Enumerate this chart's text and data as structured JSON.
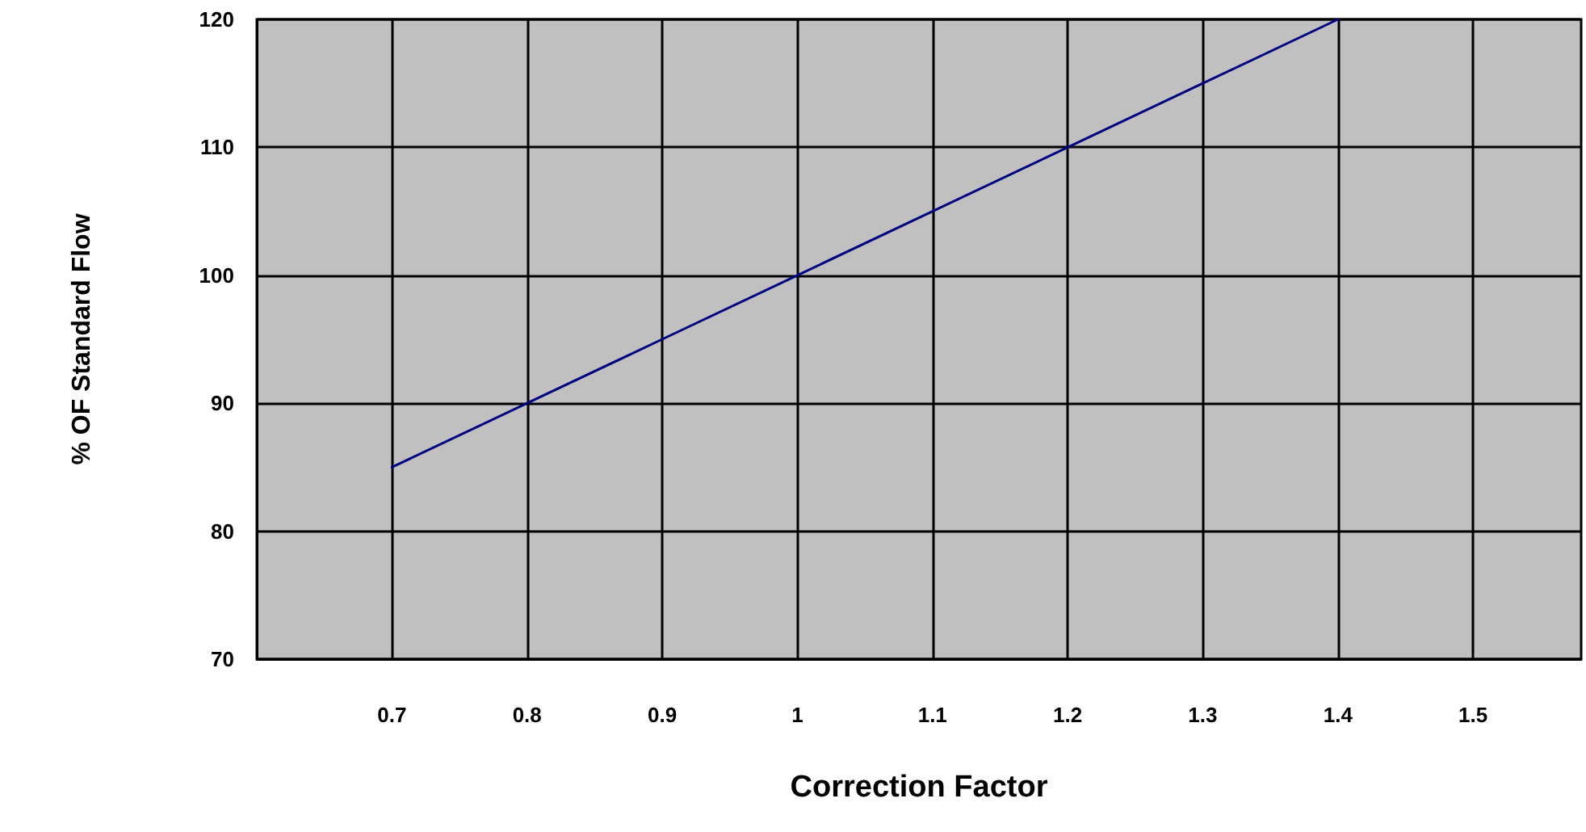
{
  "chart_data": {
    "type": "line",
    "xlabel": "Correction Factor",
    "ylabel": "% OF Standard Flow",
    "x": [
      0.7,
      0.8,
      0.9,
      1,
      1.1,
      1.2,
      1.3,
      1.4
    ],
    "series": [
      {
        "color": "#000080",
        "values": [
          85,
          90,
          95,
          100,
          105,
          110,
          115,
          120
        ]
      }
    ],
    "xlim": [
      0.6,
      1.58
    ],
    "xticks": [
      0.7,
      0.8,
      0.9,
      1,
      1.1,
      1.2,
      1.3,
      1.4,
      1.5
    ],
    "ylim": [
      70,
      120
    ],
    "yticks": [
      70,
      80,
      90,
      100,
      110,
      120
    ],
    "grid": true,
    "marker": "none",
    "line_style": "solid"
  }
}
